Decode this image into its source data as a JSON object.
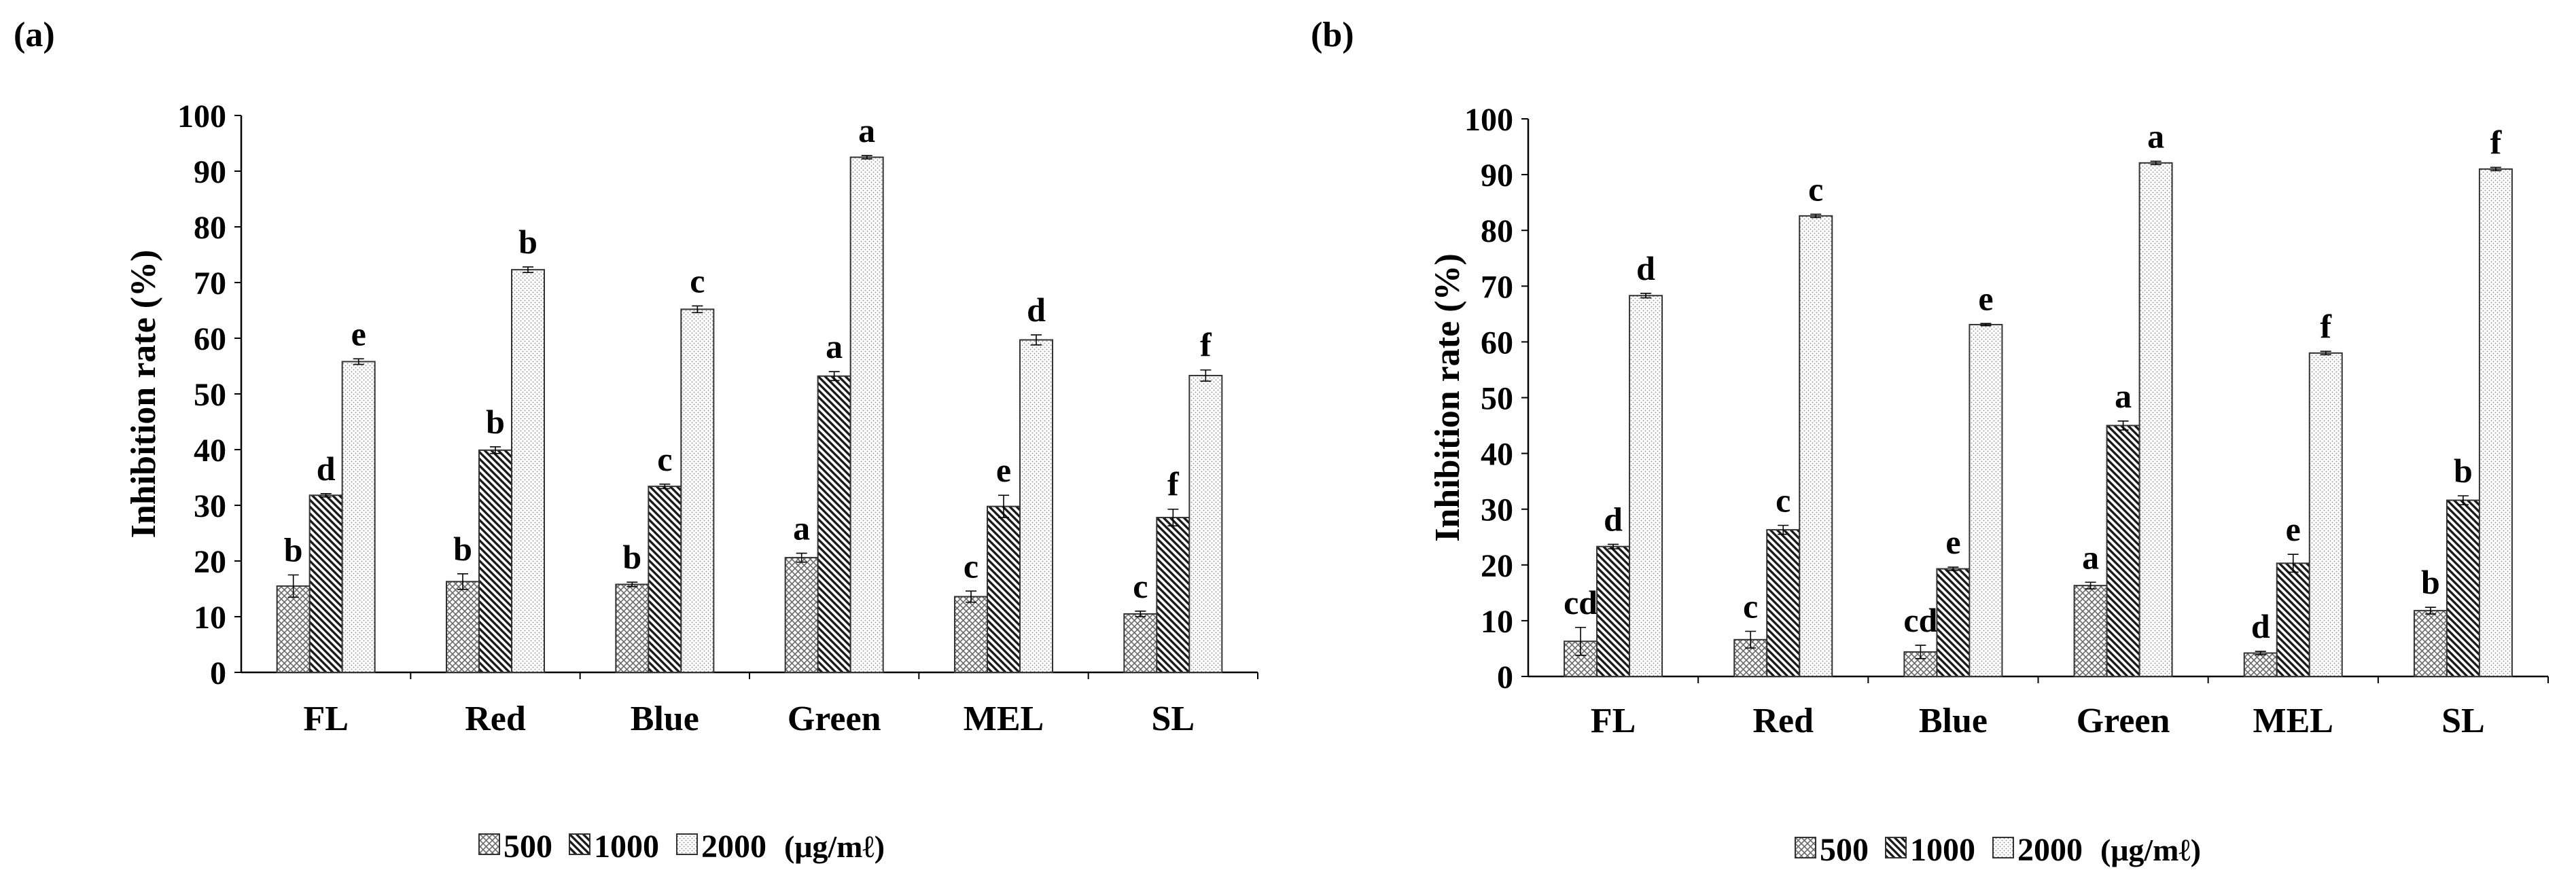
{
  "chart_data": [
    {
      "panel_label": "(a)",
      "type": "bar",
      "ylabel": "Inhibition rate (%)",
      "ylim": [
        0,
        100
      ],
      "yticks": [
        "0",
        "10",
        "20",
        "30",
        "40",
        "50",
        "60",
        "70",
        "80",
        "90",
        "100"
      ],
      "categories": [
        "FL",
        "Red",
        "Blue",
        "Green",
        "MEL",
        "SL"
      ],
      "series": [
        {
          "name": "500",
          "pattern": "crosshatch",
          "values": [
            15.5,
            16.3,
            15.8,
            20.6,
            13.6,
            10.5
          ],
          "errors": [
            2.0,
            1.4,
            0.4,
            0.8,
            1.0,
            0.5
          ],
          "letters": [
            "b",
            "b",
            "b",
            "a",
            "c",
            "c"
          ]
        },
        {
          "name": "1000",
          "pattern": "diagonal",
          "values": [
            31.8,
            39.9,
            33.4,
            53.2,
            29.8,
            27.8
          ],
          "errors": [
            0.3,
            0.6,
            0.4,
            0.8,
            2.0,
            1.5
          ],
          "letters": [
            "d",
            "b",
            "c",
            "a",
            "e",
            "f"
          ]
        },
        {
          "name": "2000",
          "pattern": "dots",
          "values": [
            55.8,
            72.3,
            65.2,
            92.5,
            59.7,
            53.3
          ],
          "errors": [
            0.5,
            0.5,
            0.6,
            0.3,
            0.9,
            1.0
          ],
          "letters": [
            "e",
            "b",
            "c",
            "a",
            "d",
            "f"
          ]
        }
      ],
      "legend": {
        "items": [
          "500",
          "1000",
          "2000"
        ],
        "unit": "(μg/mℓ)",
        "placement": "bottom"
      }
    },
    {
      "panel_label": "(b)",
      "type": "bar",
      "ylabel": "Inhibition rate (%)",
      "ylim": [
        0,
        100
      ],
      "yticks": [
        "0",
        "10",
        "20",
        "30",
        "40",
        "50",
        "60",
        "70",
        "80",
        "90",
        "100"
      ],
      "categories": [
        "FL",
        "Red",
        "Blue",
        "Green",
        "MEL",
        "SL"
      ],
      "series": [
        {
          "name": "500",
          "pattern": "crosshatch",
          "values": [
            6.3,
            6.6,
            4.4,
            16.3,
            4.2,
            11.8
          ],
          "errors": [
            2.5,
            1.5,
            1.2,
            0.6,
            0.3,
            0.6
          ],
          "letters": [
            "cd",
            "c",
            "cd",
            "a",
            "d",
            "b"
          ]
        },
        {
          "name": "1000",
          "pattern": "diagonal",
          "values": [
            23.3,
            26.3,
            19.3,
            45.0,
            20.3,
            31.6
          ],
          "errors": [
            0.4,
            0.8,
            0.3,
            0.8,
            1.6,
            0.8
          ],
          "letters": [
            "d",
            "c",
            "e",
            "a",
            "e",
            "b"
          ]
        },
        {
          "name": "2000",
          "pattern": "dots",
          "values": [
            68.3,
            82.6,
            63.1,
            92.1,
            58.0,
            91.0
          ],
          "errors": [
            0.4,
            0.3,
            0.2,
            0.3,
            0.3,
            0.3
          ],
          "letters": [
            "d",
            "c",
            "e",
            "a",
            "f",
            "f"
          ]
        }
      ],
      "legend": {
        "items": [
          "500",
          "1000",
          "2000"
        ],
        "unit": "(μg/mℓ)",
        "placement": "bottom"
      }
    }
  ]
}
